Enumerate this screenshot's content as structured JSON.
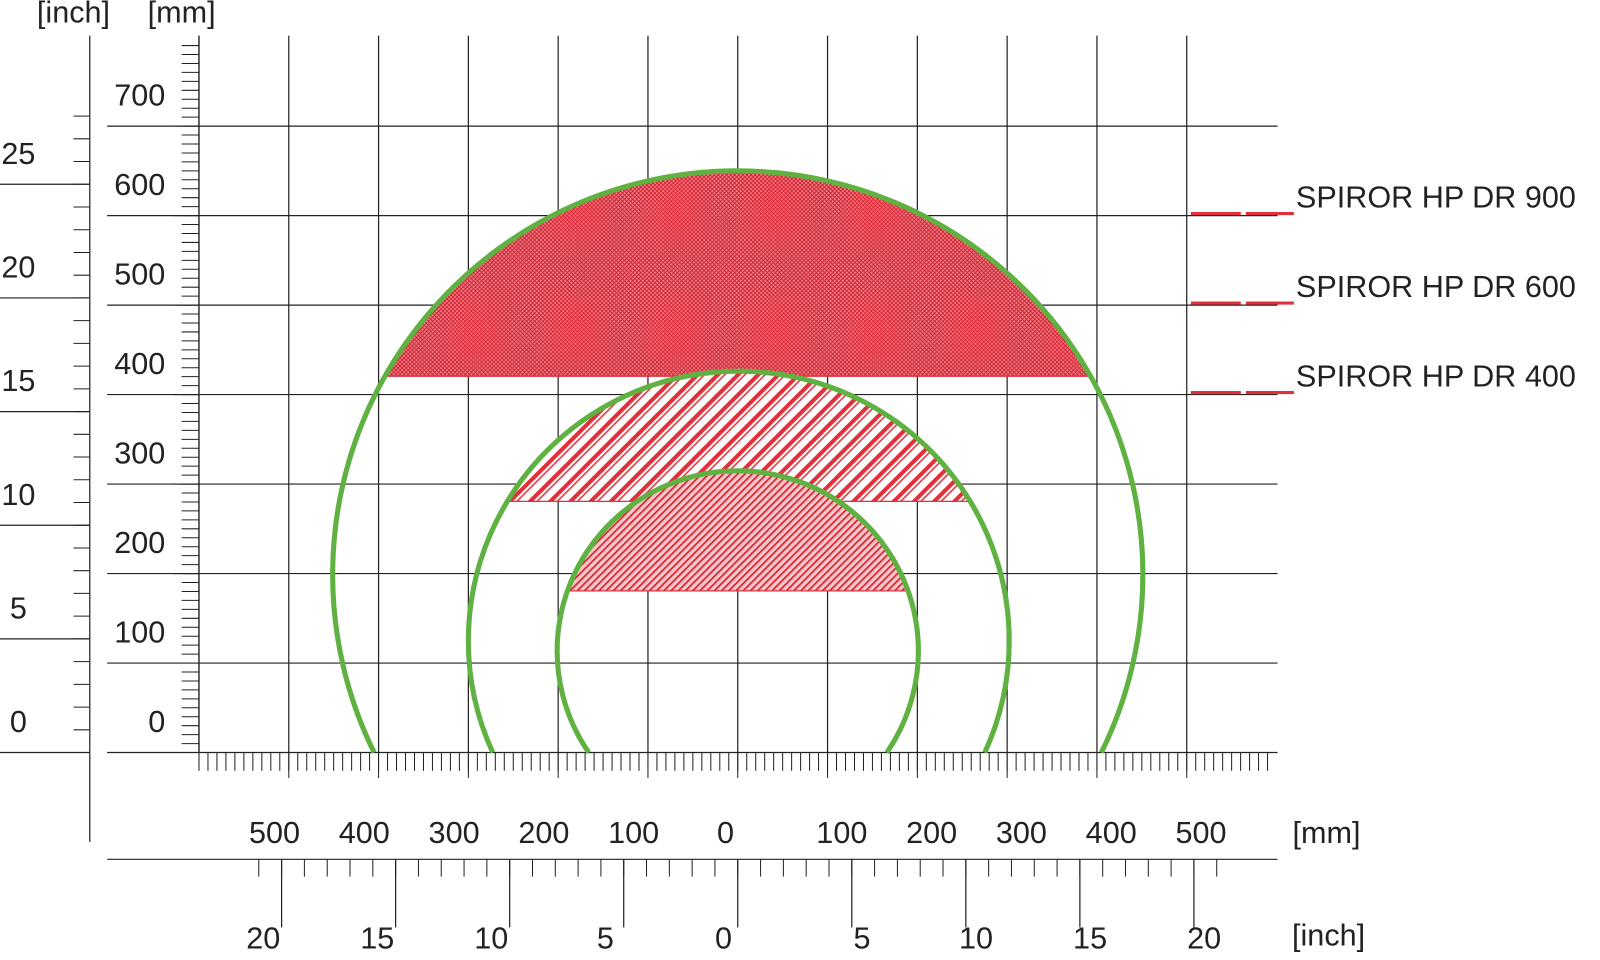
{
  "axes": {
    "y_mm_unit": "[mm]",
    "y_inch_unit": "[inch]",
    "x_mm_unit": "[mm]",
    "x_inch_unit": "[inch]",
    "y_mm_ticks": [
      0,
      100,
      200,
      300,
      400,
      500,
      600,
      700
    ],
    "y_inch_ticks": [
      0,
      5,
      10,
      15,
      20,
      25
    ],
    "x_mm_ticks": [
      {
        "value": -500,
        "label": "500"
      },
      {
        "value": -400,
        "label": "400"
      },
      {
        "value": -300,
        "label": "300"
      },
      {
        "value": -200,
        "label": "200"
      },
      {
        "value": -100,
        "label": "100"
      },
      0,
      100,
      200,
      300,
      400,
      500
    ],
    "x_inch_ticks": [
      {
        "value": -20,
        "label": "20"
      },
      {
        "value": -15,
        "label": "15"
      },
      {
        "value": -10,
        "label": "10"
      },
      {
        "value": -5,
        "label": "5"
      },
      0,
      5,
      10,
      15,
      20
    ]
  },
  "legend": [
    "SPIROR HP DR 900",
    "SPIROR HP DR 600",
    "SPIROR HP DR 400"
  ]
}
